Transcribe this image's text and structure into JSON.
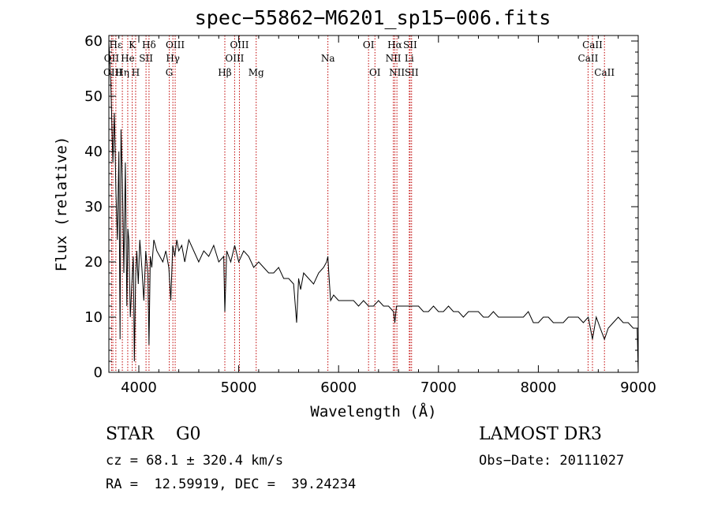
{
  "title": "spec−55862−M6201_sp15−006.fits",
  "info": {
    "class_line": "STAR    G0",
    "survey": "LAMOST DR3",
    "cz": "cz = 68.1 ± 320.4 km/s",
    "obs_date": "Obs−Date: 20111027",
    "radec": "RA =  12.59919, DEC =  39.24234"
  },
  "colors": {
    "line_marker": "#c00000",
    "spectrum": "#000000"
  },
  "chart_data": {
    "type": "line",
    "title": "spec−55862−M6201_sp15−006.fits",
    "xlabel": "Wavelength (Å)",
    "ylabel": "Flux (relative)",
    "xlim": [
      3700,
      9000
    ],
    "ylim": [
      0,
      61
    ],
    "xticks": [
      4000,
      5000,
      6000,
      7000,
      8000,
      9000
    ],
    "yticks": [
      0,
      10,
      20,
      30,
      40,
      50,
      60
    ],
    "series": [
      {
        "name": "spectrum",
        "x": [
          3700,
          3720,
          3740,
          3755,
          3770,
          3785,
          3800,
          3812,
          3822,
          3835,
          3850,
          3865,
          3880,
          3890,
          3900,
          3915,
          3930,
          3945,
          3955,
          3968,
          3980,
          3995,
          4010,
          4030,
          4050,
          4070,
          4090,
          4102,
          4115,
          4130,
          4150,
          4180,
          4210,
          4240,
          4270,
          4300,
          4320,
          4340,
          4360,
          4380,
          4400,
          4430,
          4460,
          4500,
          4550,
          4600,
          4650,
          4700,
          4750,
          4800,
          4850,
          4861,
          4880,
          4920,
          4960,
          5000,
          5050,
          5100,
          5150,
          5200,
          5250,
          5300,
          5350,
          5400,
          5450,
          5500,
          5550,
          5580,
          5600,
          5620,
          5650,
          5700,
          5750,
          5800,
          5850,
          5880,
          5893,
          5905,
          5920,
          5950,
          6000,
          6050,
          6100,
          6150,
          6200,
          6250,
          6300,
          6350,
          6400,
          6450,
          6500,
          6550,
          6563,
          6580,
          6600,
          6650,
          6700,
          6750,
          6800,
          6850,
          6900,
          6950,
          7000,
          7050,
          7100,
          7150,
          7200,
          7250,
          7300,
          7350,
          7400,
          7450,
          7500,
          7550,
          7600,
          7650,
          7700,
          7750,
          7800,
          7850,
          7900,
          7950,
          8000,
          8050,
          8100,
          8150,
          8200,
          8250,
          8300,
          8350,
          8400,
          8450,
          8500,
          8542,
          8580,
          8620,
          8662,
          8700,
          8750,
          8800,
          8850,
          8900,
          8950,
          8990,
          9000
        ],
        "values": [
          60,
          52,
          38,
          47,
          33,
          24,
          40,
          6,
          44,
          35,
          18,
          38,
          12,
          26,
          24,
          10,
          16,
          21,
          2,
          17,
          22,
          16,
          24,
          19,
          13,
          22,
          18,
          5,
          21,
          19,
          24,
          22,
          21,
          20,
          22,
          19,
          13,
          23,
          21,
          24,
          22,
          23,
          20,
          24,
          22,
          20,
          22,
          21,
          23,
          20,
          21,
          11,
          22,
          20,
          23,
          20,
          22,
          21,
          19,
          20,
          19,
          18,
          18,
          19,
          17,
          17,
          16,
          9,
          17,
          15,
          18,
          17,
          16,
          18,
          19,
          20,
          21,
          17,
          13,
          14,
          13,
          13,
          13,
          13,
          12,
          13,
          12,
          12,
          13,
          12,
          12,
          11,
          9,
          12,
          12,
          12,
          12,
          12,
          12,
          11,
          11,
          12,
          11,
          11,
          12,
          11,
          11,
          10,
          11,
          11,
          11,
          10,
          10,
          11,
          10,
          10,
          10,
          10,
          10,
          10,
          11,
          9,
          9,
          10,
          10,
          9,
          9,
          9,
          10,
          10,
          10,
          9,
          10,
          6,
          10,
          8,
          6,
          8,
          9,
          10,
          9,
          9,
          8,
          8,
          0
        ]
      }
    ],
    "line_markers": [
      {
        "label": "Hε",
        "wavelength": 3770,
        "row": 1
      },
      {
        "label": "OII",
        "wavelength": 3727,
        "row": 2
      },
      {
        "label": "OIII",
        "wavelength": 3740,
        "row": 3
      },
      {
        "label": "K",
        "wavelength": 3934,
        "row": 1
      },
      {
        "label": "Hδ",
        "wavelength": 4102,
        "row": 1
      },
      {
        "label": "He",
        "wavelength": 3889,
        "row": 2
      },
      {
        "label": "Hη",
        "wavelength": 3835,
        "row": 3
      },
      {
        "label": "SII",
        "wavelength": 4072,
        "row": 2
      },
      {
        "label": "H",
        "wavelength": 3968,
        "row": 3
      },
      {
        "label": "OIII",
        "wavelength": 4364,
        "row": 1
      },
      {
        "label": "Hγ",
        "wavelength": 4341,
        "row": 2
      },
      {
        "label": "G",
        "wavelength": 4305,
        "row": 3
      },
      {
        "label": "Hβ",
        "wavelength": 4861,
        "row": 3
      },
      {
        "label": "OIII",
        "wavelength": 5007,
        "row": 1
      },
      {
        "label": "OIII",
        "wavelength": 4959,
        "row": 2
      },
      {
        "label": "Mg",
        "wavelength": 5175,
        "row": 3
      },
      {
        "label": "Na",
        "wavelength": 5893,
        "row": 2
      },
      {
        "label": "OI",
        "wavelength": 6300,
        "row": 1
      },
      {
        "label": "OI",
        "wavelength": 6364,
        "row": 3
      },
      {
        "label": "Hα",
        "wavelength": 6563,
        "row": 1
      },
      {
        "label": "NII",
        "wavelength": 6548,
        "row": 2
      },
      {
        "label": "NII",
        "wavelength": 6584,
        "row": 3
      },
      {
        "label": "SII",
        "wavelength": 6716,
        "row": 1
      },
      {
        "label": "Li",
        "wavelength": 6708,
        "row": 2
      },
      {
        "label": "SII",
        "wavelength": 6731,
        "row": 3
      },
      {
        "label": "CaII",
        "wavelength": 8542,
        "row": 1
      },
      {
        "label": "CaII",
        "wavelength": 8498,
        "row": 2
      },
      {
        "label": "CaII",
        "wavelength": 8662,
        "row": 3
      }
    ]
  }
}
